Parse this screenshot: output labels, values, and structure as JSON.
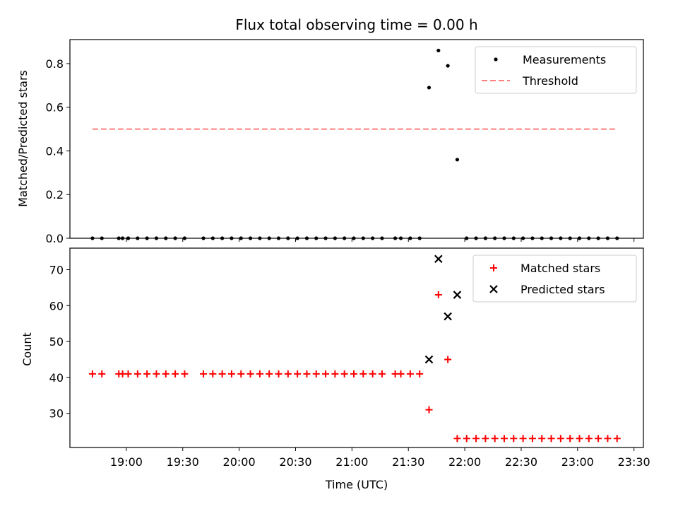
{
  "chart_data": {
    "title": "Flux total observing time = 0.00 h",
    "xlabel": "Time (UTC)",
    "x_ticks": [
      "19:00",
      "19:30",
      "20:00",
      "20:30",
      "21:00",
      "21:30",
      "22:00",
      "22:30",
      "23:00",
      "23:30"
    ],
    "x_tick_minutes": [
      1140,
      1170,
      1200,
      1230,
      1260,
      1290,
      1320,
      1350,
      1380,
      1410
    ],
    "xlim_minutes": [
      1110,
      1415
    ],
    "panels": [
      {
        "type": "scatter",
        "ylabel": "Matched/Predicted stars",
        "ylim": [
          0,
          0.91
        ],
        "y_ticks": [
          0.0,
          0.2,
          0.4,
          0.6,
          0.8
        ],
        "y_tick_labels": [
          "0.0",
          "0.2",
          "0.4",
          "0.6",
          "0.8"
        ],
        "legend": {
          "position": "top-right",
          "entries": [
            "Measurements",
            "Threshold"
          ]
        },
        "series": [
          {
            "name": "Measurements",
            "marker": "dot",
            "color": "#000000",
            "points": [
              [
                1122,
                0
              ],
              [
                1127,
                0
              ],
              [
                1136,
                0
              ],
              [
                1138,
                0
              ],
              [
                1141,
                0
              ],
              [
                1146,
                0
              ],
              [
                1151,
                0
              ],
              [
                1156,
                0
              ],
              [
                1161,
                0
              ],
              [
                1166,
                0
              ],
              [
                1171,
                0
              ],
              [
                1181,
                0
              ],
              [
                1186,
                0
              ],
              [
                1191,
                0
              ],
              [
                1196,
                0
              ],
              [
                1201,
                0
              ],
              [
                1206,
                0
              ],
              [
                1211,
                0
              ],
              [
                1216,
                0
              ],
              [
                1221,
                0
              ],
              [
                1226,
                0
              ],
              [
                1231,
                0
              ],
              [
                1236,
                0
              ],
              [
                1241,
                0
              ],
              [
                1246,
                0
              ],
              [
                1251,
                0
              ],
              [
                1256,
                0
              ],
              [
                1261,
                0
              ],
              [
                1266,
                0
              ],
              [
                1271,
                0
              ],
              [
                1276,
                0
              ],
              [
                1283,
                0
              ],
              [
                1286,
                0
              ],
              [
                1291,
                0
              ],
              [
                1296,
                0
              ],
              [
                1301,
                0.69
              ],
              [
                1306,
                0.86
              ],
              [
                1311,
                0.79
              ],
              [
                1316,
                0.36
              ],
              [
                1321,
                0
              ],
              [
                1326,
                0
              ],
              [
                1331,
                0
              ],
              [
                1336,
                0
              ],
              [
                1341,
                0
              ],
              [
                1346,
                0
              ],
              [
                1351,
                0
              ],
              [
                1356,
                0
              ],
              [
                1361,
                0
              ],
              [
                1366,
                0
              ],
              [
                1371,
                0
              ],
              [
                1376,
                0
              ],
              [
                1381,
                0
              ],
              [
                1386,
                0
              ],
              [
                1391,
                0
              ],
              [
                1396,
                0
              ],
              [
                1401,
                0
              ]
            ]
          },
          {
            "name": "Threshold",
            "marker": "dashed-line",
            "color": "#ff7f7f",
            "x_range": [
              1122,
              1401
            ],
            "y": 0.5
          }
        ]
      },
      {
        "type": "scatter",
        "ylabel": "Count",
        "ylim": [
          20.5,
          76
        ],
        "y_ticks": [
          30,
          40,
          50,
          60,
          70
        ],
        "y_tick_labels": [
          "30",
          "40",
          "50",
          "60",
          "70"
        ],
        "legend": {
          "position": "top-right",
          "entries": [
            "Matched stars",
            "Predicted stars"
          ]
        },
        "series": [
          {
            "name": "Matched stars",
            "marker": "plus",
            "color": "#ff0000",
            "points": [
              [
                1122,
                41
              ],
              [
                1127,
                41
              ],
              [
                1136,
                41
              ],
              [
                1138,
                41
              ],
              [
                1141,
                41
              ],
              [
                1146,
                41
              ],
              [
                1151,
                41
              ],
              [
                1156,
                41
              ],
              [
                1161,
                41
              ],
              [
                1166,
                41
              ],
              [
                1171,
                41
              ],
              [
                1181,
                41
              ],
              [
                1186,
                41
              ],
              [
                1191,
                41
              ],
              [
                1196,
                41
              ],
              [
                1201,
                41
              ],
              [
                1206,
                41
              ],
              [
                1211,
                41
              ],
              [
                1216,
                41
              ],
              [
                1221,
                41
              ],
              [
                1226,
                41
              ],
              [
                1231,
                41
              ],
              [
                1236,
                41
              ],
              [
                1241,
                41
              ],
              [
                1246,
                41
              ],
              [
                1251,
                41
              ],
              [
                1256,
                41
              ],
              [
                1261,
                41
              ],
              [
                1266,
                41
              ],
              [
                1271,
                41
              ],
              [
                1276,
                41
              ],
              [
                1283,
                41
              ],
              [
                1286,
                41
              ],
              [
                1291,
                41
              ],
              [
                1296,
                41
              ],
              [
                1301,
                31
              ],
              [
                1306,
                63
              ],
              [
                1311,
                45
              ],
              [
                1316,
                23
              ],
              [
                1321,
                23
              ],
              [
                1326,
                23
              ],
              [
                1331,
                23
              ],
              [
                1336,
                23
              ],
              [
                1341,
                23
              ],
              [
                1346,
                23
              ],
              [
                1351,
                23
              ],
              [
                1356,
                23
              ],
              [
                1361,
                23
              ],
              [
                1366,
                23
              ],
              [
                1371,
                23
              ],
              [
                1376,
                23
              ],
              [
                1381,
                23
              ],
              [
                1386,
                23
              ],
              [
                1391,
                23
              ],
              [
                1396,
                23
              ],
              [
                1401,
                23
              ]
            ]
          },
          {
            "name": "Predicted stars",
            "marker": "x",
            "color": "#000000",
            "points": [
              [
                1301,
                45
              ],
              [
                1306,
                73
              ],
              [
                1311,
                57
              ],
              [
                1316,
                63
              ]
            ]
          }
        ]
      }
    ]
  }
}
